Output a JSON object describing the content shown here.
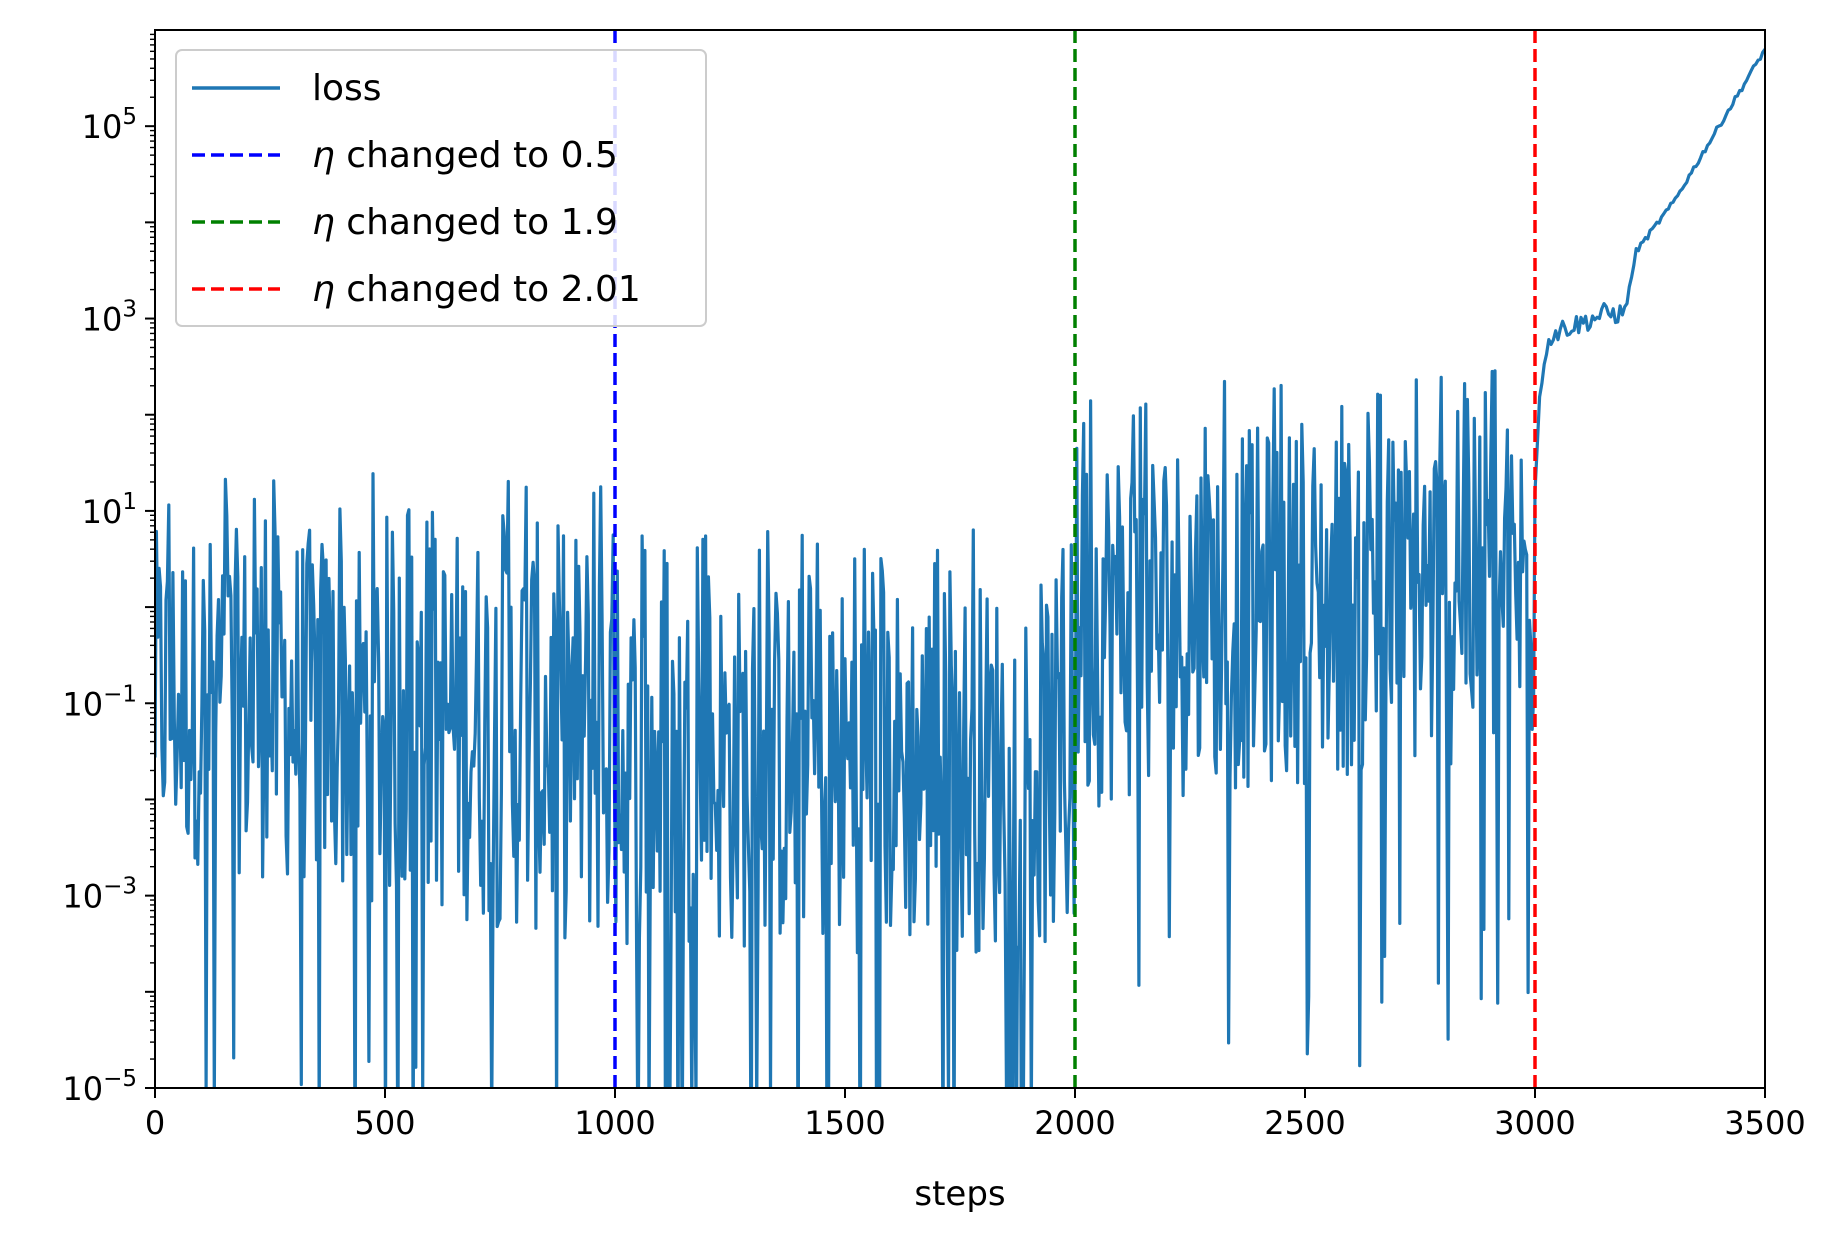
{
  "chart_data": {
    "type": "line",
    "title": "",
    "xlabel": "steps",
    "ylabel": "",
    "xlim": [
      0,
      3500
    ],
    "ylim_log10": [
      -5,
      6
    ],
    "yscale": "log",
    "xticks": [
      0,
      500,
      1000,
      1500,
      2000,
      2500,
      3000,
      3500
    ],
    "xtick_labels": [
      "0",
      "500",
      "1000",
      "1500",
      "2000",
      "2500",
      "3000",
      "3500"
    ],
    "yticks_exp": [
      -5,
      -3,
      -1,
      1,
      3,
      5
    ],
    "ytick_base": "10",
    "ytick_exp_labels": [
      "−5",
      "−3",
      "−1",
      "1",
      "3",
      "5"
    ],
    "legend_position": "upper-left",
    "series": [
      {
        "name": "loss",
        "color": "#1f77b4",
        "envelope": [
          {
            "x": 0,
            "log10_low": -3.5,
            "log10_high": 0.8
          },
          {
            "x": 1000,
            "log10_low": -4.5,
            "log10_high": 0.9
          },
          {
            "x": 1001,
            "log10_low": -4.5,
            "log10_high": 0.3
          },
          {
            "x": 2000,
            "log10_low": -4.5,
            "log10_high": 0.3
          },
          {
            "x": 2001,
            "log10_low": -3.0,
            "log10_high": 1.8
          },
          {
            "x": 2999,
            "log10_low": -2.5,
            "log10_high": 2.0
          }
        ],
        "tail": [
          {
            "x": 3000,
            "log10": 1.2
          },
          {
            "x": 3010,
            "log10": 2.2
          },
          {
            "x": 3030,
            "log10": 2.8
          },
          {
            "x": 3060,
            "log10": 2.9
          },
          {
            "x": 3100,
            "log10": 2.95
          },
          {
            "x": 3150,
            "log10": 3.05
          },
          {
            "x": 3195,
            "log10": 3.05
          },
          {
            "x": 3220,
            "log10": 3.7
          },
          {
            "x": 3300,
            "log10": 4.2
          },
          {
            "x": 3400,
            "log10": 5.0
          },
          {
            "x": 3500,
            "log10": 5.8
          }
        ]
      }
    ],
    "vlines": [
      {
        "x": 1000,
        "color": "#0000ff",
        "label_prefix": "η",
        "label": " changed to 0.5"
      },
      {
        "x": 2000,
        "color": "#008000",
        "label_prefix": "η",
        "label": " changed to 1.9"
      },
      {
        "x": 3000,
        "color": "#ff0000",
        "label_prefix": "η",
        "label": " changed to 2.01"
      }
    ],
    "legend": [
      {
        "label": "loss",
        "color": "#1f77b4",
        "style": "solid"
      },
      {
        "label_prefix": "η",
        "label": " changed to 0.5",
        "color": "#0000ff",
        "style": "dashed"
      },
      {
        "label_prefix": "η",
        "label": " changed to 1.9",
        "color": "#008000",
        "style": "dashed"
      },
      {
        "label_prefix": "η",
        "label": " changed to 2.01",
        "color": "#ff0000",
        "style": "dashed"
      }
    ]
  }
}
